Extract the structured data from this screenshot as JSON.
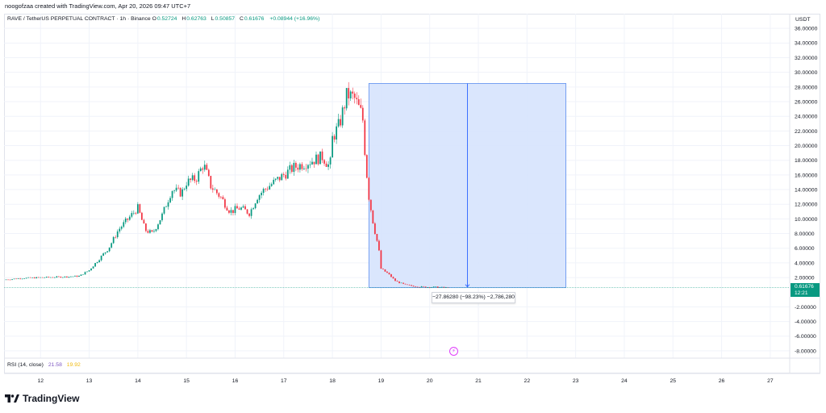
{
  "header": {
    "credit": "noogofzaa created with TradingView.com, Apr 20, 2026 09:47 UTC+7"
  },
  "legend": {
    "symbol": "RAVE / TetherUS PERPETUAL CONTRACT · 1h · Binance",
    "open_label": "O",
    "open": "0.52724",
    "high_label": "H",
    "high": "0.62763",
    "low_label": "L",
    "low": "0.50857",
    "close_label": "C",
    "close": "0.61676",
    "change": "+0.08944 (+16.96%)"
  },
  "rsi": {
    "label": "RSI (14, close)",
    "value": "21.58",
    "ma_value": "19.92"
  },
  "price_axis": {
    "unit": "USDT",
    "current_price": "0.61676",
    "countdown": "12:21"
  },
  "measure": {
    "label": "−27.86280 (−98.23%) −2,786,280"
  },
  "brand": {
    "name": "TradingView",
    "logo_icon": "tradingview-logo-icon"
  },
  "colors": {
    "up": "#089981",
    "down": "#f23645",
    "measure_fill": "#d6e3fd",
    "measure_line": "#2962ff",
    "grid": "#f0f3fa"
  },
  "chart_data": {
    "type": "candlestick",
    "interval": "1h",
    "ylim": [
      -9,
      38
    ],
    "y_ticks": [
      "-8.00000",
      "-6.00000",
      "-4.00000",
      "-2.00000",
      "2.00000",
      "4.00000",
      "6.00000",
      "8.00000",
      "10.00000",
      "12.00000",
      "14.00000",
      "16.00000",
      "18.00000",
      "20.00000",
      "22.00000",
      "24.00000",
      "26.00000",
      "28.00000",
      "30.00000",
      "32.00000",
      "34.00000",
      "36.00000"
    ],
    "y_tick_values": [
      -8,
      -6,
      -4,
      -2,
      2,
      4,
      6,
      8,
      10,
      12,
      14,
      16,
      18,
      20,
      22,
      24,
      26,
      28,
      30,
      32,
      34,
      36
    ],
    "x_ticks": [
      "12",
      "13",
      "14",
      "15",
      "16",
      "17",
      "18",
      "19",
      "20",
      "21",
      "22",
      "23",
      "24",
      "25",
      "26",
      "27"
    ],
    "x_tick_days": [
      12,
      13,
      14,
      15,
      16,
      17,
      18,
      19,
      20,
      21,
      22,
      23,
      24,
      25,
      26,
      27
    ],
    "xlim_days": [
      11.25,
      27.4
    ],
    "series_close_keypoints": [
      [
        11.25,
        1.7
      ],
      [
        11.6,
        1.9
      ],
      [
        12.0,
        2.0
      ],
      [
        12.5,
        2.1
      ],
      [
        12.8,
        2.2
      ],
      [
        13.0,
        3.0
      ],
      [
        13.2,
        4.5
      ],
      [
        13.4,
        6.0
      ],
      [
        13.6,
        8.5
      ],
      [
        13.8,
        10.0
      ],
      [
        14.0,
        11.5
      ],
      [
        14.15,
        8.5
      ],
      [
        14.3,
        8.0
      ],
      [
        14.5,
        10.5
      ],
      [
        14.7,
        14.0
      ],
      [
        14.9,
        13.5
      ],
      [
        15.0,
        15.0
      ],
      [
        15.2,
        15.5
      ],
      [
        15.35,
        17.5
      ],
      [
        15.5,
        14.5
      ],
      [
        15.7,
        13.0
      ],
      [
        15.9,
        11.0
      ],
      [
        16.1,
        11.5
      ],
      [
        16.3,
        10.8
      ],
      [
        16.45,
        13.0
      ],
      [
        16.6,
        14.0
      ],
      [
        16.8,
        15.0
      ],
      [
        17.0,
        16.0
      ],
      [
        17.2,
        17.0
      ],
      [
        17.4,
        17.5
      ],
      [
        17.6,
        18.0
      ],
      [
        17.8,
        18.5
      ],
      [
        17.95,
        17.0
      ],
      [
        18.0,
        21.0
      ],
      [
        18.15,
        23.0
      ],
      [
        18.3,
        27.0
      ],
      [
        18.45,
        26.5
      ],
      [
        18.55,
        25.0
      ],
      [
        18.62,
        24.0
      ],
      [
        18.68,
        18.0
      ],
      [
        18.75,
        13.0
      ],
      [
        18.85,
        9.0
      ],
      [
        18.95,
        6.0
      ],
      [
        19.0,
        3.2
      ],
      [
        19.15,
        2.5
      ],
      [
        19.3,
        1.5
      ],
      [
        19.5,
        1.0
      ],
      [
        19.7,
        0.8
      ],
      [
        19.9,
        0.7
      ],
      [
        20.1,
        0.7
      ],
      [
        20.4,
        0.6
      ]
    ],
    "last_close": 0.61676,
    "measure_range": {
      "x_start_day": 18.75,
      "x_end_day": 22.8,
      "y_top": 28.48,
      "y_bottom": 0.61676
    },
    "volume_pane": false
  }
}
